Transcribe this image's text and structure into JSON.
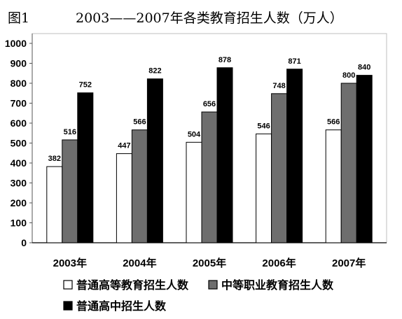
{
  "figure_label": "图1",
  "chart_data": {
    "type": "bar",
    "title": "2003——2007年各类教育招生人数（万人）",
    "categories": [
      "2003年",
      "2004年",
      "2005年",
      "2006年",
      "2007年"
    ],
    "series": [
      {
        "name": "普通高等教育招生人数",
        "values": [
          382,
          447,
          504,
          546,
          566
        ],
        "color": "#ffffff"
      },
      {
        "name": "中等职业教育招生人数",
        "values": [
          516,
          566,
          656,
          748,
          800
        ],
        "color": "#6e6e6e"
      },
      {
        "name": "普通高中招生人数",
        "values": [
          752,
          822,
          878,
          871,
          840
        ],
        "color": "#000000"
      }
    ],
    "ylim": [
      0,
      1000
    ],
    "yticks": [
      0,
      100,
      200,
      300,
      400,
      500,
      600,
      700,
      800,
      900,
      1000
    ],
    "grid": false,
    "legend": "bottom",
    "data_labels": true
  }
}
